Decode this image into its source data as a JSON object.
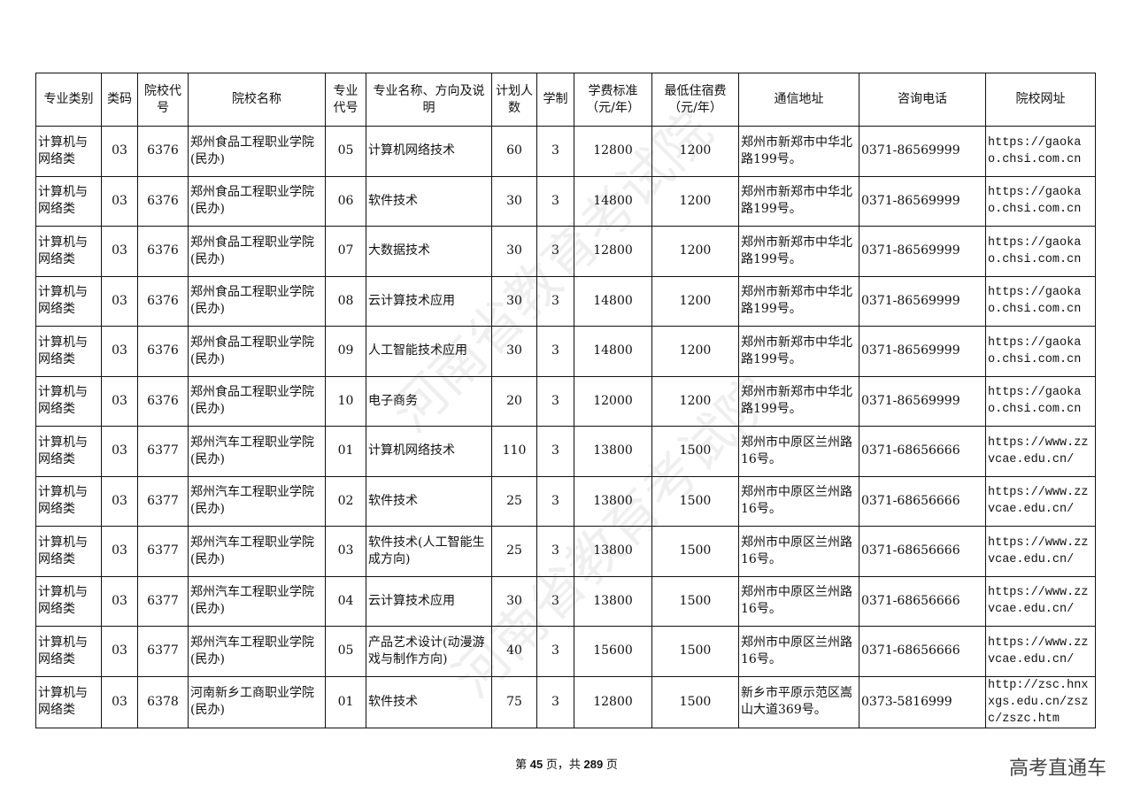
{
  "watermark": "河南省教育考试院",
  "headers": [
    "专业类别",
    "类码",
    "院校代号",
    "院校名称",
    "专业代号",
    "专业名称、方向及说明",
    "计划人数",
    "学制",
    "学费标准（元/年）",
    "最低住宿费（元/年）",
    "通信地址",
    "咨询电话",
    "院校网址"
  ],
  "rows": [
    [
      "计算机与网络类",
      "03",
      "6376",
      "郑州食品工程职业学院(民办)",
      "05",
      "计算机网络技术",
      "60",
      "3",
      "12800",
      "1200",
      "郑州市新郑市中华北路199号。",
      "0371-86569999",
      "https://gaokao.chsi.com.cn"
    ],
    [
      "计算机与网络类",
      "03",
      "6376",
      "郑州食品工程职业学院(民办)",
      "06",
      "软件技术",
      "30",
      "3",
      "14800",
      "1200",
      "郑州市新郑市中华北路199号。",
      "0371-86569999",
      "https://gaokao.chsi.com.cn"
    ],
    [
      "计算机与网络类",
      "03",
      "6376",
      "郑州食品工程职业学院(民办)",
      "07",
      "大数据技术",
      "30",
      "3",
      "12800",
      "1200",
      "郑州市新郑市中华北路199号。",
      "0371-86569999",
      "https://gaokao.chsi.com.cn"
    ],
    [
      "计算机与网络类",
      "03",
      "6376",
      "郑州食品工程职业学院(民办)",
      "08",
      "云计算技术应用",
      "30",
      "3",
      "14800",
      "1200",
      "郑州市新郑市中华北路199号。",
      "0371-86569999",
      "https://gaokao.chsi.com.cn"
    ],
    [
      "计算机与网络类",
      "03",
      "6376",
      "郑州食品工程职业学院(民办)",
      "09",
      "人工智能技术应用",
      "30",
      "3",
      "14800",
      "1200",
      "郑州市新郑市中华北路199号。",
      "0371-86569999",
      "https://gaokao.chsi.com.cn"
    ],
    [
      "计算机与网络类",
      "03",
      "6376",
      "郑州食品工程职业学院(民办)",
      "10",
      "电子商务",
      "20",
      "3",
      "12000",
      "1200",
      "郑州市新郑市中华北路199号。",
      "0371-86569999",
      "https://gaokao.chsi.com.cn"
    ],
    [
      "计算机与网络类",
      "03",
      "6377",
      "郑州汽车工程职业学院(民办)",
      "01",
      "计算机网络技术",
      "110",
      "3",
      "13800",
      "1500",
      "郑州市中原区兰州路16号。",
      "0371-68656666",
      "https://www.zzvcae.edu.cn/"
    ],
    [
      "计算机与网络类",
      "03",
      "6377",
      "郑州汽车工程职业学院(民办)",
      "02",
      "软件技术",
      "25",
      "3",
      "13800",
      "1500",
      "郑州市中原区兰州路16号。",
      "0371-68656666",
      "https://www.zzvcae.edu.cn/"
    ],
    [
      "计算机与网络类",
      "03",
      "6377",
      "郑州汽车工程职业学院(民办)",
      "03",
      "软件技术(人工智能生成方向)",
      "25",
      "3",
      "13800",
      "1500",
      "郑州市中原区兰州路16号。",
      "0371-68656666",
      "https://www.zzvcae.edu.cn/"
    ],
    [
      "计算机与网络类",
      "03",
      "6377",
      "郑州汽车工程职业学院(民办)",
      "04",
      "云计算技术应用",
      "30",
      "3",
      "13800",
      "1500",
      "郑州市中原区兰州路16号。",
      "0371-68656666",
      "https://www.zzvcae.edu.cn/"
    ],
    [
      "计算机与网络类",
      "03",
      "6377",
      "郑州汽车工程职业学院(民办)",
      "05",
      "产品艺术设计(动漫游戏与制作方向)",
      "40",
      "3",
      "15600",
      "1500",
      "郑州市中原区兰州路16号。",
      "0371-68656666",
      "https://www.zzvcae.edu.cn/"
    ],
    [
      "计算机与网络类",
      "03",
      "6378",
      "河南新乡工商职业学院(民办)",
      "01",
      "软件技术",
      "75",
      "3",
      "12800",
      "1500",
      "新乡市平原示范区嵩山大道369号。",
      "0373-5816999",
      "http://zsc.hnxxgs.edu.cn/zszc/zszc.htm"
    ]
  ],
  "footer": {
    "prefix": "第 ",
    "page": "45",
    "middle": " 页，共 ",
    "total": "289",
    "suffix": " 页"
  },
  "brand": "高考直通车"
}
